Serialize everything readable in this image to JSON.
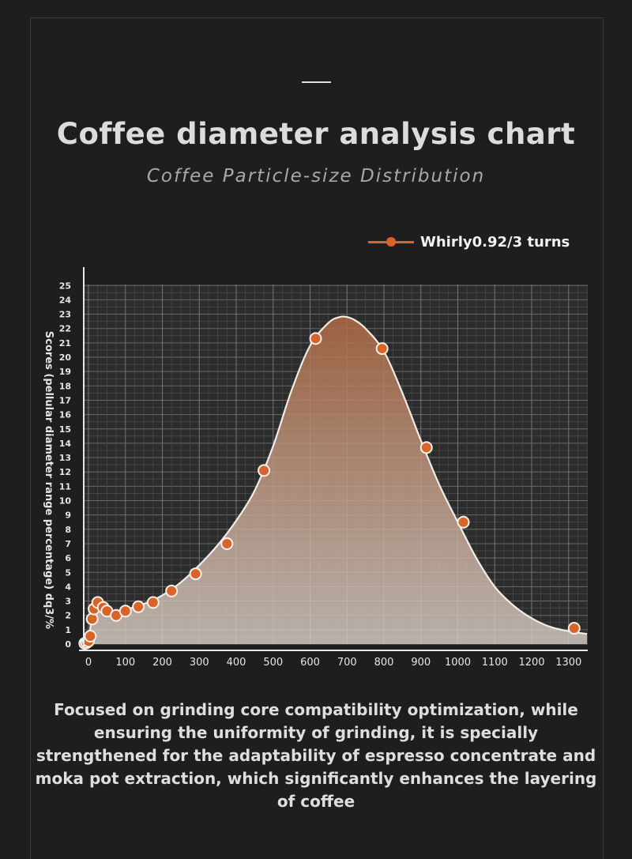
{
  "header": {
    "title": "Coffee diameter analysis chart",
    "subtitle": "Coffee Particle-size Distribution"
  },
  "legend": {
    "label": "Whirly0.92/3 turns"
  },
  "colors": {
    "background": "#1e1e1e",
    "plot_background": "#2c2c2c",
    "grid": "#6a6a6a",
    "curve": "#f0ece6",
    "marker_fill": "#d9642a",
    "marker_stroke": "#f4f0ea",
    "area_top": "#b06a44",
    "area_bottom": "#dcd3cb"
  },
  "chart_data": {
    "type": "area",
    "title": "Coffee diameter analysis chart",
    "subtitle": "Coffee Particle-size Distribution",
    "ylabel": "Scores (pellular diameter range percentage) dq3/%",
    "xlabel": "",
    "xlim": [
      0,
      1350
    ],
    "ylim": [
      0,
      25
    ],
    "x_ticks": [
      0,
      100,
      200,
      300,
      400,
      500,
      600,
      700,
      800,
      900,
      1000,
      1100,
      1200,
      1300
    ],
    "y_ticks": [
      0,
      1,
      2,
      3,
      4,
      5,
      6,
      7,
      8,
      9,
      10,
      11,
      12,
      13,
      14,
      15,
      16,
      17,
      18,
      19,
      20,
      21,
      22,
      23,
      24,
      25
    ],
    "grid": true,
    "legend_position": "top-right",
    "series": [
      {
        "name": "Whirly0.92/3 turns",
        "curve_x": [
          -10,
          0,
          10,
          20,
          35,
          60,
          100,
          150,
          200,
          250,
          300,
          350,
          400,
          450,
          500,
          550,
          600,
          650,
          680,
          700,
          720,
          750,
          800,
          850,
          900,
          950,
          1000,
          1050,
          1100,
          1150,
          1200,
          1250,
          1300,
          1350
        ],
        "curve_y": [
          0.05,
          0.4,
          1.9,
          2.7,
          2.6,
          2.2,
          2.4,
          2.8,
          3.4,
          4.3,
          5.5,
          6.9,
          8.6,
          10.7,
          13.8,
          17.7,
          20.8,
          22.4,
          22.8,
          22.8,
          22.6,
          22.0,
          20.4,
          17.5,
          14.2,
          11.1,
          8.5,
          6.0,
          4.0,
          2.7,
          1.8,
          1.2,
          0.9,
          0.7
        ],
        "points": [
          {
            "x": -10,
            "y": 0.05
          },
          {
            "x": -5,
            "y": 0.1
          },
          {
            "x": 0,
            "y": 0.2
          },
          {
            "x": 5,
            "y": 0.55
          },
          {
            "x": 10,
            "y": 1.75
          },
          {
            "x": 15,
            "y": 2.45
          },
          {
            "x": 25,
            "y": 2.9
          },
          {
            "x": 40,
            "y": 2.55
          },
          {
            "x": 50,
            "y": 2.3
          },
          {
            "x": 75,
            "y": 2.0
          },
          {
            "x": 100,
            "y": 2.3
          },
          {
            "x": 135,
            "y": 2.6
          },
          {
            "x": 175,
            "y": 2.9
          },
          {
            "x": 225,
            "y": 3.7
          },
          {
            "x": 290,
            "y": 4.9
          },
          {
            "x": 375,
            "y": 7.0
          },
          {
            "x": 475,
            "y": 12.1
          },
          {
            "x": 615,
            "y": 21.3
          },
          {
            "x": 795,
            "y": 20.6
          },
          {
            "x": 915,
            "y": 13.7
          },
          {
            "x": 1015,
            "y": 8.5
          },
          {
            "x": 1315,
            "y": 1.1
          }
        ]
      }
    ]
  },
  "description": "Focused on grinding core compatibility optimization, while ensuring the uniformity of grinding, it is specially strengthened for the adaptability of espresso concentrate and moka pot extraction, which significantly enhances the layering of coffee"
}
